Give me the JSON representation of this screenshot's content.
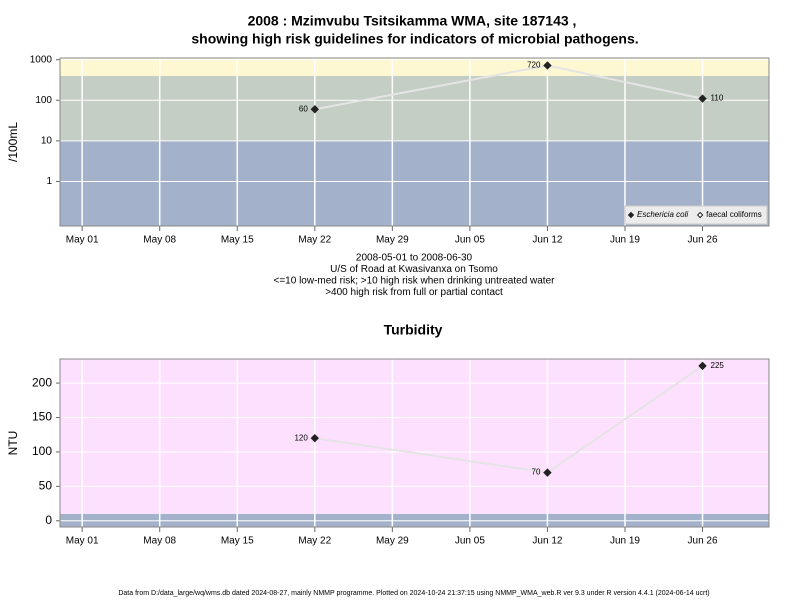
{
  "chart_data": [
    {
      "type": "line",
      "title": "2008 : Mzimvubu Tsitsikamma WMA, site 187143 ,",
      "subtitle": "showing high risk guidelines for indicators of microbial pathogens.",
      "y_label": "/100mL",
      "annotations": [
        "2008-05-01 to 2008-06-30",
        "U/S of Road at Kwasivanxa on Tsomo",
        "<=10 low-med risk; >10 high risk when drinking untreated water",
        ">400 high risk from full or partial contact"
      ],
      "x": [
        "2008-05-22",
        "2008-06-12",
        "2008-06-26"
      ],
      "series": [
        {
          "name": "Eschericia coli",
          "color": "#222222",
          "line_color": "#e4e4e4",
          "marker": "filled",
          "values": [
            60,
            720,
            110
          ]
        },
        {
          "name": "faecal coliforms",
          "color": "#222222",
          "line_color": "#e4e4e4",
          "marker": "open",
          "values": [
            null,
            null,
            null
          ]
        }
      ],
      "log_y": true,
      "xlim": [
        "2008-04-29",
        "2008-07-02"
      ],
      "ylim": [
        0.08,
        1100
      ],
      "yticks": [
        1,
        10,
        100,
        1000
      ],
      "xticks": [
        {
          "value": "2008-05-01",
          "label": "May 01"
        },
        {
          "value": "2008-05-08",
          "label": "May 08"
        },
        {
          "value": "2008-05-15",
          "label": "May 15"
        },
        {
          "value": "2008-05-22",
          "label": "May 22"
        },
        {
          "value": "2008-05-29",
          "label": "May 29"
        },
        {
          "value": "2008-06-05",
          "label": "Jun 05"
        },
        {
          "value": "2008-06-12",
          "label": "Jun 12"
        },
        {
          "value": "2008-06-19",
          "label": "Jun 19"
        },
        {
          "value": "2008-06-26",
          "label": "Jun 26"
        }
      ],
      "bands": [
        {
          "to": 10,
          "color": "#a3b2ca"
        },
        {
          "from": 10,
          "to": 400,
          "color": "#c4cec4"
        },
        {
          "from": 400,
          "color": "#fdf7d2"
        }
      ],
      "grid": true,
      "legend": "bottom-right"
    },
    {
      "type": "line",
      "title": "Turbidity",
      "y_label": "NTU",
      "x": [
        "2008-05-22",
        "2008-06-12",
        "2008-06-26"
      ],
      "series": [
        {
          "name": "Turbidity",
          "color": "#222222",
          "line_color": "#e4e4e4",
          "marker": "filled",
          "values": [
            120,
            70,
            225
          ]
        }
      ],
      "log_y": false,
      "xlim": [
        "2008-04-29",
        "2008-07-02"
      ],
      "ylim": [
        -9,
        235
      ],
      "yticks": [
        0,
        50,
        100,
        150,
        200
      ],
      "xticks": [
        {
          "value": "2008-05-01",
          "label": "May 01"
        },
        {
          "value": "2008-05-08",
          "label": "May 08"
        },
        {
          "value": "2008-05-15",
          "label": "May 15"
        },
        {
          "value": "2008-05-22",
          "label": "May 22"
        },
        {
          "value": "2008-05-29",
          "label": "May 29"
        },
        {
          "value": "2008-06-05",
          "label": "Jun 05"
        },
        {
          "value": "2008-06-12",
          "label": "Jun 12"
        },
        {
          "value": "2008-06-19",
          "label": "Jun 19"
        },
        {
          "value": "2008-06-26",
          "label": "Jun 26"
        }
      ],
      "bands": [
        {
          "to": 10,
          "color": "#a3b2ca"
        },
        {
          "from": 10,
          "color": "#fde0fd"
        }
      ],
      "grid": true
    }
  ],
  "footer": "Data from D:/data_large/wq/wms.db dated 2024-08-27, mainly NMMP programme. Plotted on 2024-10-24 21:37:15 using NMMP_WMA_web.R ver 9.3 under R version 4.4.1 (2024-06-14 ucrt)"
}
